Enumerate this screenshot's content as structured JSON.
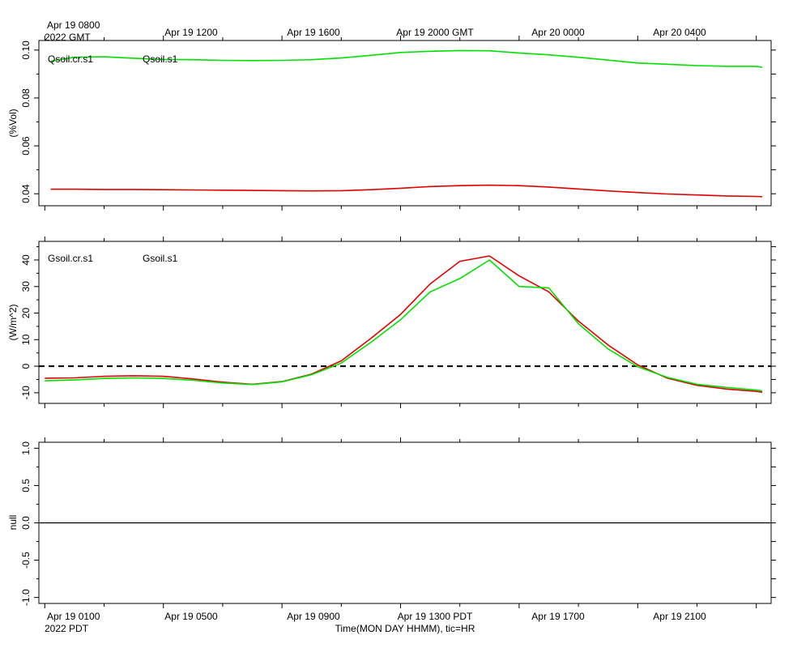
{
  "header": {
    "top_left_line1": "Apr 19 0800",
    "top_left_line2": "2022 GMT",
    "top_ticks": [
      "Apr 19 1200",
      "Apr 19 1600",
      "Apr 19 2000 GMT",
      "Apr 20 0000",
      "Apr 20 0400"
    ]
  },
  "footer": {
    "bottom_left_line1": "Apr 19 0100",
    "bottom_left_line2": "2022 PDT",
    "bottom_ticks": [
      "Apr 19 0500",
      "Apr 19 0900",
      "Apr 19 1300 PDT",
      "Apr 19 1700",
      "Apr 19 2100"
    ],
    "axis_title": "Time(MON DAY HHMM), tic=HR"
  },
  "colors": {
    "red": "#e00000",
    "green": "#00e000",
    "axis": "#000000"
  },
  "chart_data": [
    {
      "type": "line",
      "ylabel": "(%Vol)",
      "ylim": [
        0.035,
        0.104
      ],
      "yticks": [
        0.04,
        0.06,
        0.08,
        0.1
      ],
      "ytick_labels": [
        "0.04",
        "0.06",
        "0.08",
        "0.10"
      ],
      "x": [
        0.2,
        1,
        2,
        3,
        4,
        5,
        6,
        7,
        8,
        9,
        10,
        11,
        12,
        13,
        14,
        15,
        16,
        17,
        18,
        19,
        20,
        21,
        22,
        23,
        24,
        24.2
      ],
      "series": [
        {
          "name": "Qsoil.cr.s1",
          "color": "red",
          "values": [
            0.0419,
            0.0419,
            0.0418,
            0.0418,
            0.0417,
            0.0416,
            0.0415,
            0.0414,
            0.0413,
            0.0412,
            0.0413,
            0.0417,
            0.0423,
            0.043,
            0.0434,
            0.0436,
            0.0434,
            0.0428,
            0.042,
            0.0412,
            0.0405,
            0.0399,
            0.0395,
            0.0391,
            0.0389,
            0.0388
          ]
        },
        {
          "name": "Qsoil.s1",
          "color": "green",
          "values": [
            0.0954,
            0.097,
            0.0972,
            0.0966,
            0.0961,
            0.096,
            0.0957,
            0.0956,
            0.0957,
            0.096,
            0.0967,
            0.0978,
            0.099,
            0.0995,
            0.0998,
            0.0997,
            0.0988,
            0.098,
            0.097,
            0.0958,
            0.0946,
            0.0941,
            0.0935,
            0.0932,
            0.0932,
            0.0928
          ]
        }
      ]
    },
    {
      "type": "line",
      "ylabel": "(W/m^2)",
      "ylim": [
        -14,
        47
      ],
      "yticks": [
        -10,
        0,
        10,
        20,
        30,
        40
      ],
      "ytick_labels": [
        "-10",
        "0",
        "10",
        "20",
        "30",
        "40"
      ],
      "reference_line": 0,
      "x": [
        0,
        1,
        2,
        3,
        4,
        5,
        6,
        7,
        8,
        9,
        10,
        11,
        12,
        13,
        14,
        15,
        16,
        17,
        18,
        19,
        20,
        21,
        22,
        23,
        24,
        24.2
      ],
      "series": [
        {
          "name": "Gsoil.cr.s1",
          "color": "red",
          "values": [
            -4.5,
            -4.4,
            -3.8,
            -3.6,
            -3.8,
            -4.8,
            -6.0,
            -6.8,
            -5.8,
            -3.0,
            2.0,
            10.5,
            19.5,
            31.0,
            39.5,
            41.5,
            34.0,
            28.0,
            17.0,
            8.0,
            0.5,
            -4.5,
            -7.2,
            -8.6,
            -9.5,
            -9.8
          ]
        },
        {
          "name": "Gsoil.s1",
          "color": "green",
          "values": [
            -5.5,
            -5.2,
            -4.6,
            -4.4,
            -4.6,
            -5.3,
            -6.3,
            -6.9,
            -5.9,
            -3.2,
            1.2,
            9.0,
            17.5,
            28.0,
            33.0,
            40.0,
            30.0,
            29.5,
            16.0,
            6.5,
            -0.2,
            -4.2,
            -6.8,
            -8.0,
            -9.0,
            -9.3
          ]
        }
      ]
    },
    {
      "type": "line",
      "ylabel": "null",
      "ylim": [
        -1.08,
        1.08
      ],
      "yticks": [
        -1.0,
        -0.5,
        0.0,
        0.5,
        1.0
      ],
      "ytick_labels": [
        "-1.0",
        "-0.5",
        "0.0",
        "0.5",
        "1.0"
      ],
      "reference_line": 0,
      "x": [],
      "series": []
    }
  ]
}
